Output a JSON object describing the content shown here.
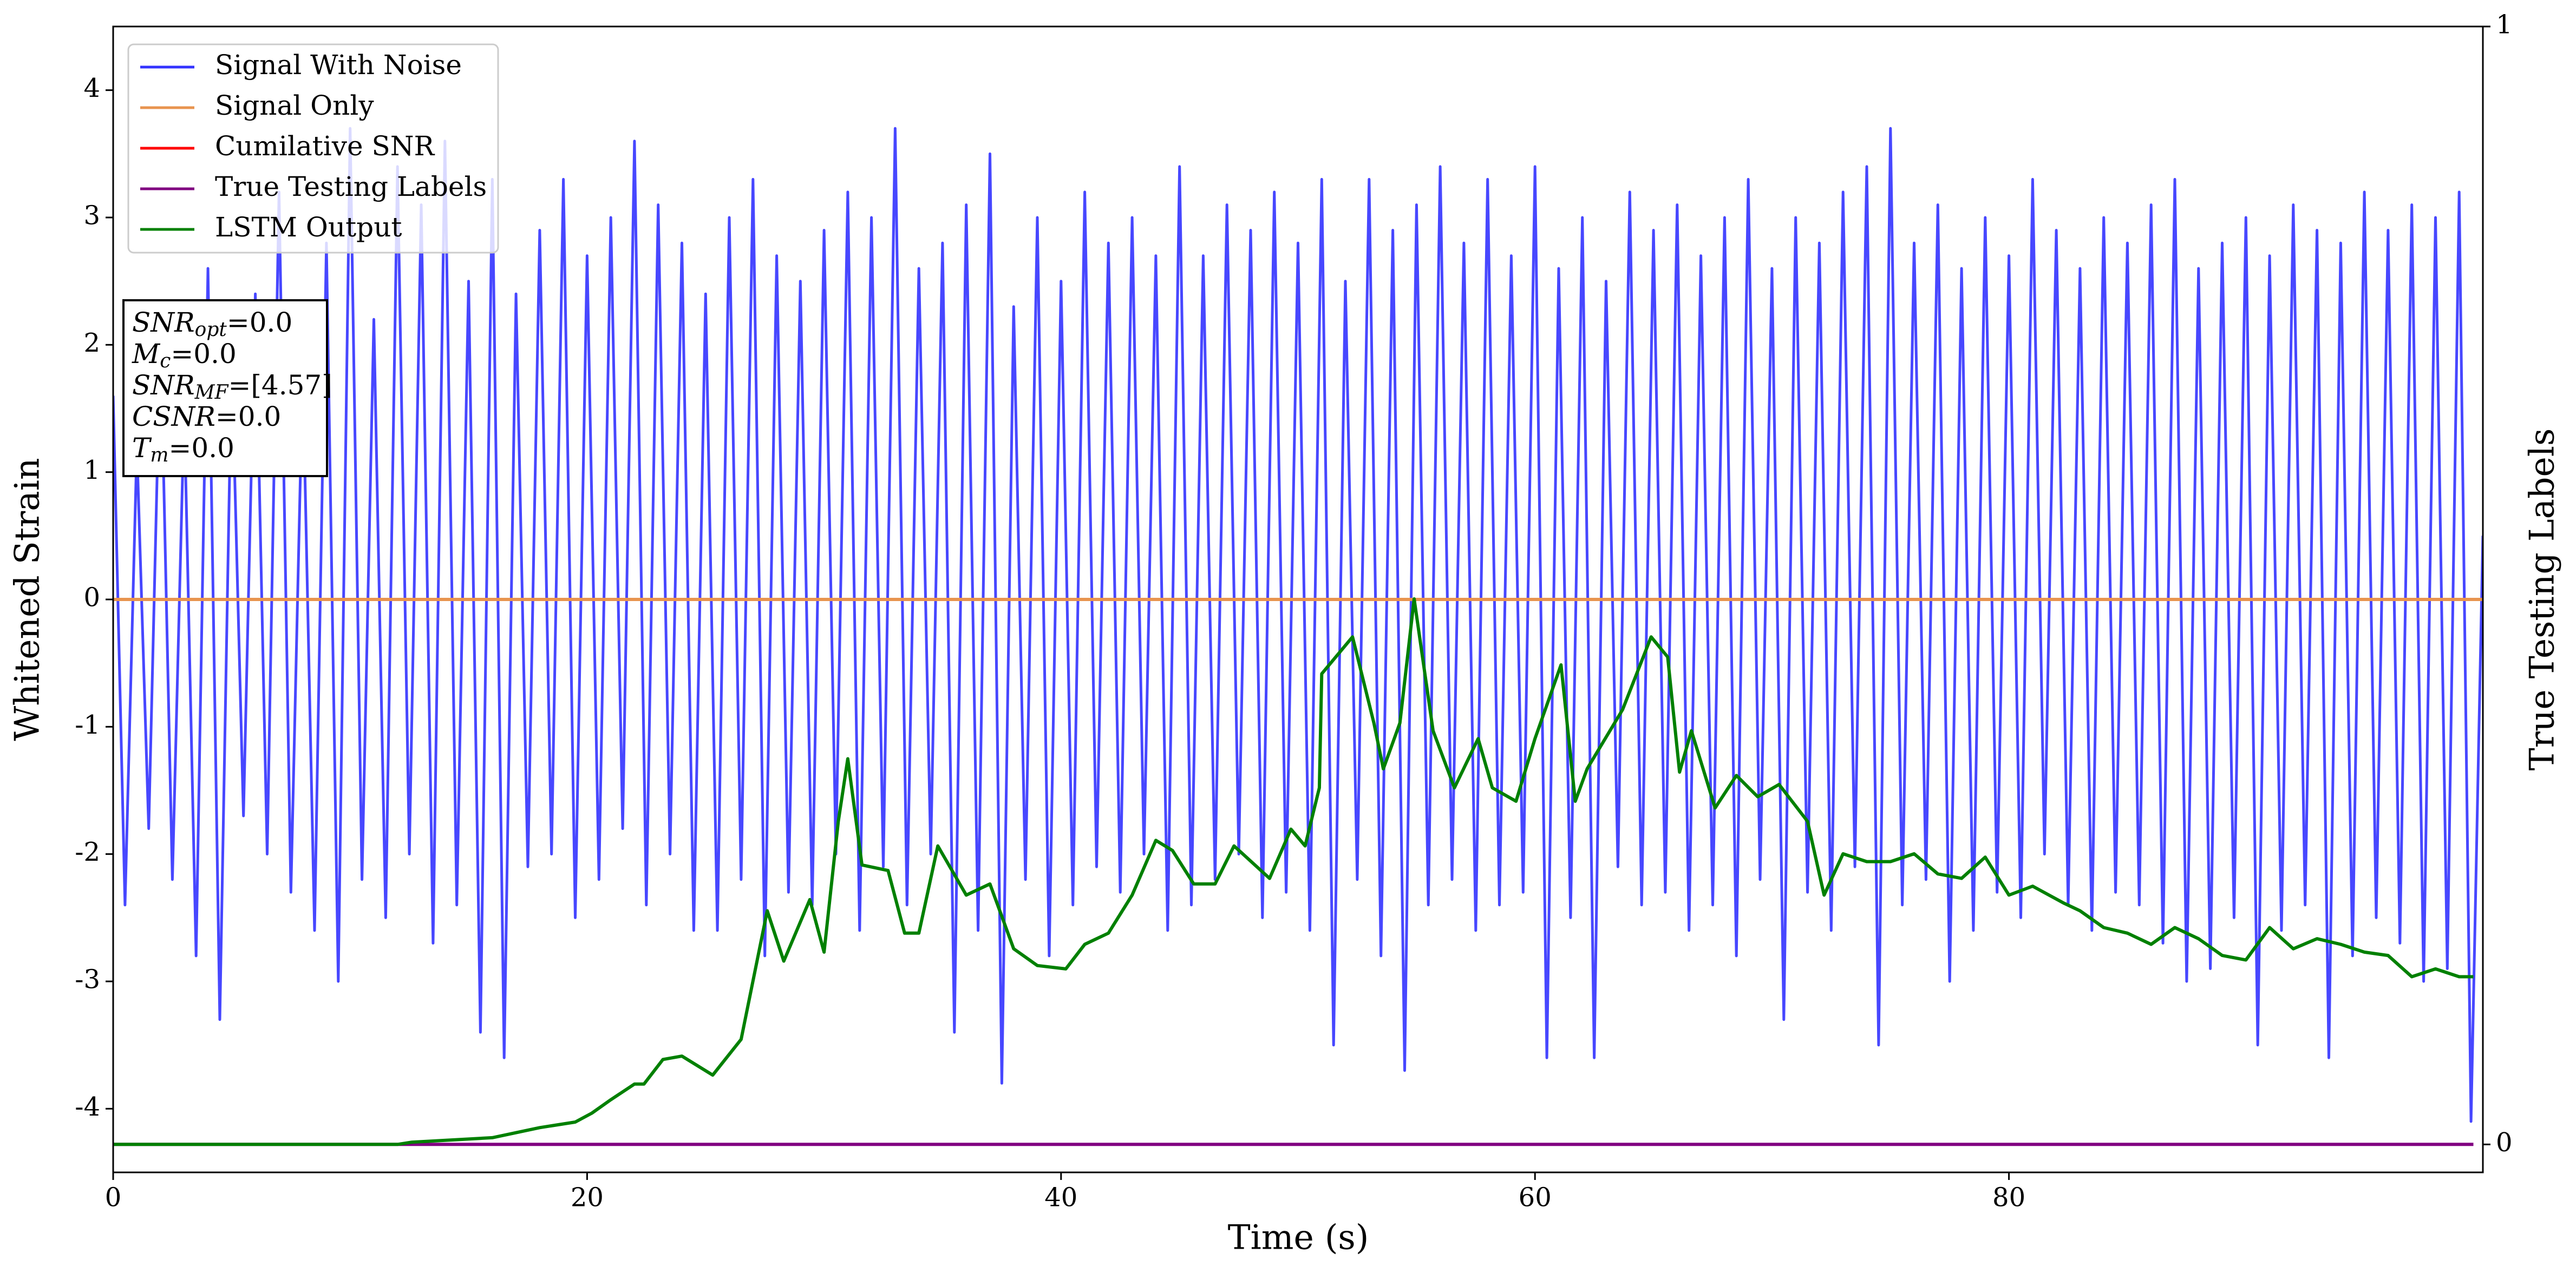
{
  "chart_data": {
    "type": "line",
    "xlabel": "Time (s)",
    "ylabel": "Whitened Strain",
    "y2label": "True Testing Labels",
    "xlim": [
      0,
      100
    ],
    "xticks": [
      0,
      20,
      40,
      60,
      80
    ],
    "ylim": [
      -4.5,
      4.5
    ],
    "yticks": [
      -4,
      -3,
      -2,
      -1,
      0,
      1,
      2,
      3,
      4
    ],
    "y2lim": [
      -0.025,
      1
    ],
    "y2ticks": [
      0,
      1
    ],
    "legend": "upper left",
    "annotation": [
      {
        "symbol": "SNR",
        "subscript": "opt",
        "text": "=0.0"
      },
      {
        "symbol": "M",
        "subscript": "c",
        "text": "=0.0"
      },
      {
        "symbol": "SNR",
        "subscript": "MF",
        "text": "=[4.57]"
      },
      {
        "symbol": "CSNR",
        "text": "=0.0"
      },
      {
        "symbol": "T",
        "subscript": "m",
        "text": "=0.0"
      }
    ],
    "series": [
      {
        "name": "Signal With Noise",
        "color": "#3333ff",
        "x": [
          0,
          0.5,
          1,
          1.5,
          2,
          2.5,
          3,
          3.5,
          4,
          4.5,
          5,
          5.5,
          6,
          6.5,
          7,
          7.5,
          8,
          8.5,
          9,
          9.5,
          10,
          10.5,
          11,
          11.5,
          12,
          12.5,
          13,
          13.5,
          14,
          14.5,
          15,
          15.5,
          16,
          16.5,
          17,
          17.5,
          18,
          18.5,
          19,
          19.5,
          20,
          20.5,
          21,
          21.5,
          22,
          22.5,
          23,
          23.5,
          24,
          24.5,
          25,
          25.5,
          26,
          26.5,
          27,
          27.5,
          28,
          28.5,
          29,
          29.5,
          30,
          30.5,
          31,
          31.5,
          32,
          32.5,
          33,
          33.5,
          34,
          34.5,
          35,
          35.5,
          36,
          36.5,
          37,
          37.5,
          38,
          38.5,
          39,
          39.5,
          40,
          40.5,
          41,
          41.5,
          42,
          42.5,
          43,
          43.5,
          44,
          44.5,
          45,
          45.5,
          46,
          46.5,
          47,
          47.5,
          48,
          48.5,
          49,
          49.5,
          50,
          50.5,
          51,
          51.5,
          52,
          52.5,
          53,
          53.5,
          54,
          54.5,
          55,
          55.5,
          56,
          56.5,
          57,
          57.5,
          58,
          58.5,
          59,
          59.5,
          60,
          60.5,
          61,
          61.5,
          62,
          62.5,
          63,
          63.5,
          64,
          64.5,
          65,
          65.5,
          66,
          66.5,
          67,
          67.5,
          68,
          68.5,
          69,
          69.5,
          70,
          70.5,
          71,
          71.5,
          72,
          72.5,
          73,
          73.5,
          74,
          74.5,
          75,
          75.5,
          76,
          76.5,
          77,
          77.5,
          78,
          78.5,
          79,
          79.5,
          80,
          80.5,
          81,
          81.5,
          82,
          82.5,
          83,
          83.5,
          84,
          84.5,
          85,
          85.5,
          86,
          86.5,
          87,
          87.5,
          88,
          88.5,
          89,
          89.5,
          90,
          90.5,
          91,
          91.5,
          92,
          92.5,
          93,
          93.5,
          94,
          94.5,
          95,
          95.5,
          96,
          96.5,
          97,
          97.5,
          98,
          98.5,
          99,
          99.5,
          100
        ],
        "values": [
          1.6,
          -2.4,
          1.2,
          -1.8,
          2.1,
          -2.2,
          1.5,
          -2.8,
          2.6,
          -3.3,
          1.9,
          -1.7,
          2.4,
          -2.0,
          3.2,
          -2.3,
          1.8,
          -2.6,
          2.8,
          -3.0,
          3.7,
          -2.2,
          2.2,
          -2.5,
          3.4,
          -2.0,
          3.1,
          -2.7,
          3.6,
          -2.4,
          2.5,
          -3.4,
          3.3,
          -3.6,
          2.4,
          -2.1,
          2.9,
          -2.0,
          3.3,
          -2.5,
          2.7,
          -2.2,
          3.0,
          -1.8,
          3.6,
          -2.4,
          3.1,
          -2.0,
          2.8,
          -2.6,
          2.4,
          -2.6,
          3.0,
          -2.2,
          3.3,
          -2.8,
          2.7,
          -2.3,
          2.5,
          -2.4,
          2.9,
          -2.0,
          3.2,
          -2.6,
          3.0,
          -2.1,
          3.7,
          -2.4,
          2.6,
          -2.0,
          2.8,
          -3.4,
          3.1,
          -2.6,
          3.5,
          -3.8,
          2.3,
          -2.2,
          3.0,
          -2.8,
          2.5,
          -2.4,
          3.2,
          -2.1,
          2.8,
          -2.3,
          3.0,
          -2.0,
          2.7,
          -2.6,
          3.4,
          -2.4,
          2.7,
          -2.2,
          3.1,
          -2.0,
          2.9,
          -2.5,
          3.2,
          -2.3,
          2.8,
          -2.6,
          3.3,
          -3.5,
          2.5,
          -2.2,
          3.3,
          -2.8,
          2.9,
          -3.7,
          3.1,
          -2.4,
          3.4,
          -2.2,
          2.8,
          -2.6,
          3.3,
          -2.4,
          2.7,
          -2.3,
          3.4,
          -3.6,
          2.6,
          -2.5,
          3.0,
          -3.6,
          2.5,
          -2.1,
          3.2,
          -2.4,
          2.9,
          -2.3,
          3.1,
          -2.6,
          2.7,
          -2.4,
          3.0,
          -2.8,
          3.3,
          -2.2,
          2.6,
          -3.3,
          3.0,
          -2.3,
          2.8,
          -2.6,
          3.2,
          -2.1,
          3.4,
          -3.5,
          3.7,
          -2.4,
          2.8,
          -2.2,
          3.1,
          -3.0,
          2.6,
          -2.6,
          3.0,
          -2.3,
          2.7,
          -2.5,
          3.3,
          -2.0,
          2.9,
          -2.4,
          2.6,
          -2.6,
          3.0,
          -2.3,
          2.8,
          -2.4,
          3.1,
          -2.7,
          3.3,
          -3.0,
          2.6,
          -2.9,
          2.8,
          -2.5,
          3.0,
          -3.5,
          2.7,
          -2.6,
          3.1,
          -2.4,
          2.9,
          -3.6,
          2.8,
          -2.8,
          3.2,
          -2.5,
          2.9,
          -2.7,
          3.1,
          -3.0,
          3.0,
          -2.9,
          3.2,
          -4.1,
          0.5
        ]
      },
      {
        "name": "Signal Only",
        "color": "#e8944f",
        "x": [
          0,
          100
        ],
        "values": [
          0,
          0
        ]
      },
      {
        "name": "Cumilative SNR",
        "color": "#ff0000",
        "x": [
          0,
          100
        ],
        "values": [
          0,
          0
        ]
      },
      {
        "name": "True Testing Labels",
        "color": "#800080",
        "axis": "y2",
        "x": [
          0,
          99.6
        ],
        "values": [
          0,
          0
        ]
      },
      {
        "name": "LSTM Output",
        "color": "#008000",
        "axis": "y2",
        "x": [
          0,
          12,
          12.6,
          16,
          18,
          19.5,
          20.2,
          21,
          22,
          22.4,
          23.2,
          24,
          25.3,
          26.5,
          27.6,
          28.3,
          29.4,
          30,
          30.6,
          31,
          31.6,
          32.7,
          33.4,
          34,
          34.8,
          36,
          37,
          38,
          39,
          40.2,
          41,
          42,
          43,
          44,
          44.7,
          45.6,
          46.5,
          47.3,
          48.8,
          49.7,
          50.3,
          50.9,
          51,
          52.3,
          53.2,
          53.6,
          54.3,
          54.9,
          55.7,
          56.6,
          57.6,
          58.2,
          59.2,
          60,
          61.1,
          61.7,
          62.2,
          63.7,
          64.9,
          65.6,
          66.1,
          66.6,
          67.6,
          68.5,
          69.4,
          70.3,
          71.5,
          72.2,
          73,
          74,
          75,
          76,
          77,
          78,
          79,
          80,
          81,
          82.3,
          83,
          84,
          85,
          86,
          87,
          88,
          89,
          90,
          91,
          92,
          93,
          94,
          95,
          96,
          97,
          98,
          99,
          99.6
        ],
        "values": [
          0,
          0,
          0.002,
          0.006,
          0.015,
          0.02,
          0.028,
          0.04,
          0.054,
          0.054,
          0.076,
          0.079,
          0.062,
          0.094,
          0.209,
          0.164,
          0.219,
          0.172,
          0.289,
          0.345,
          0.25,
          0.245,
          0.189,
          0.189,
          0.267,
          0.223,
          0.233,
          0.175,
          0.16,
          0.157,
          0.179,
          0.189,
          0.223,
          0.272,
          0.263,
          0.233,
          0.233,
          0.267,
          0.238,
          0.282,
          0.267,
          0.319,
          0.421,
          0.454,
          0.377,
          0.336,
          0.377,
          0.488,
          0.37,
          0.319,
          0.363,
          0.319,
          0.307,
          0.363,
          0.429,
          0.307,
          0.336,
          0.389,
          0.454,
          0.436,
          0.333,
          0.37,
          0.301,
          0.33,
          0.311,
          0.322,
          0.289,
          0.223,
          0.26,
          0.253,
          0.253,
          0.26,
          0.242,
          0.238,
          0.257,
          0.223,
          0.231,
          0.216,
          0.209,
          0.194,
          0.189,
          0.179,
          0.194,
          0.184,
          0.169,
          0.165,
          0.194,
          0.175,
          0.184,
          0.179,
          0.172,
          0.169,
          0.15,
          0.157,
          0.15,
          0.15
        ]
      }
    ]
  }
}
